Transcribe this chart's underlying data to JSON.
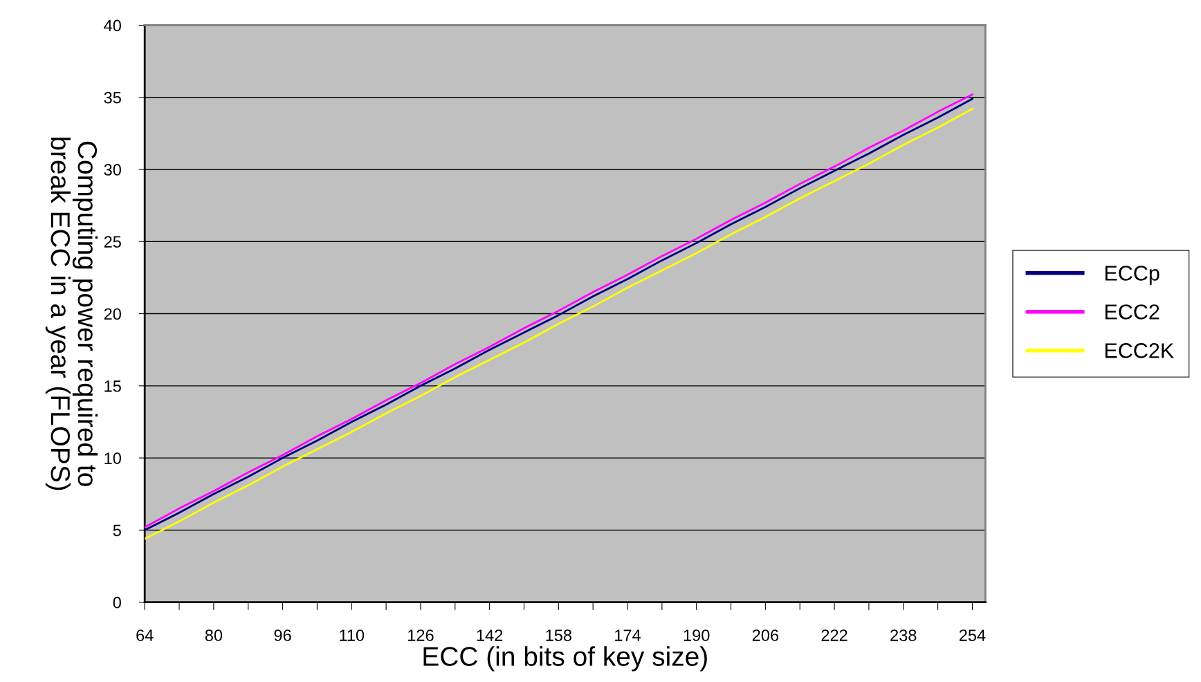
{
  "chart_data": {
    "type": "line",
    "xlabel": "ECC (in bits of key size)",
    "ylabel": "Computing power required to\nbreak ECC in a year (FLOPS)",
    "categories": [
      "64",
      null,
      "80",
      null,
      "96",
      null,
      "110",
      null,
      "126",
      null,
      "142",
      null,
      "158",
      null,
      "174",
      null,
      "190",
      null,
      "206",
      null,
      "222",
      null,
      "238",
      null,
      "254"
    ],
    "series": [
      {
        "name": "ECCp",
        "color": "#000080",
        "values": [
          5.0,
          6.2,
          7.5,
          8.7,
          10.0,
          11.2,
          12.5,
          13.7,
          15.0,
          16.2,
          17.5,
          18.7,
          19.9,
          21.2,
          22.4,
          23.7,
          24.9,
          26.2,
          27.4,
          28.7,
          29.9,
          31.1,
          32.4,
          33.6,
          34.9
        ]
      },
      {
        "name": "ECC2",
        "color": "#ff00ff",
        "values": [
          5.2,
          6.5,
          7.7,
          9.0,
          10.2,
          11.5,
          12.7,
          14.0,
          15.2,
          16.5,
          17.7,
          19.0,
          20.2,
          21.5,
          22.7,
          24.0,
          25.2,
          26.5,
          27.7,
          29.0,
          30.2,
          31.5,
          32.7,
          34.0,
          35.2
        ]
      },
      {
        "name": "ECC2K",
        "color": "#ffff00",
        "values": [
          4.4,
          5.6,
          6.9,
          8.1,
          9.4,
          10.6,
          11.8,
          13.1,
          14.3,
          15.6,
          16.8,
          18.0,
          19.3,
          20.5,
          21.8,
          23.0,
          24.2,
          25.5,
          26.7,
          28.0,
          29.2,
          30.4,
          31.7,
          32.9,
          34.2
        ]
      }
    ],
    "ylim": [
      0,
      40
    ],
    "yticks": [
      0,
      5,
      10,
      15,
      20,
      25,
      30,
      35,
      40
    ],
    "grid": "y",
    "legend": "right",
    "marker": "none",
    "line_style": "solid"
  }
}
